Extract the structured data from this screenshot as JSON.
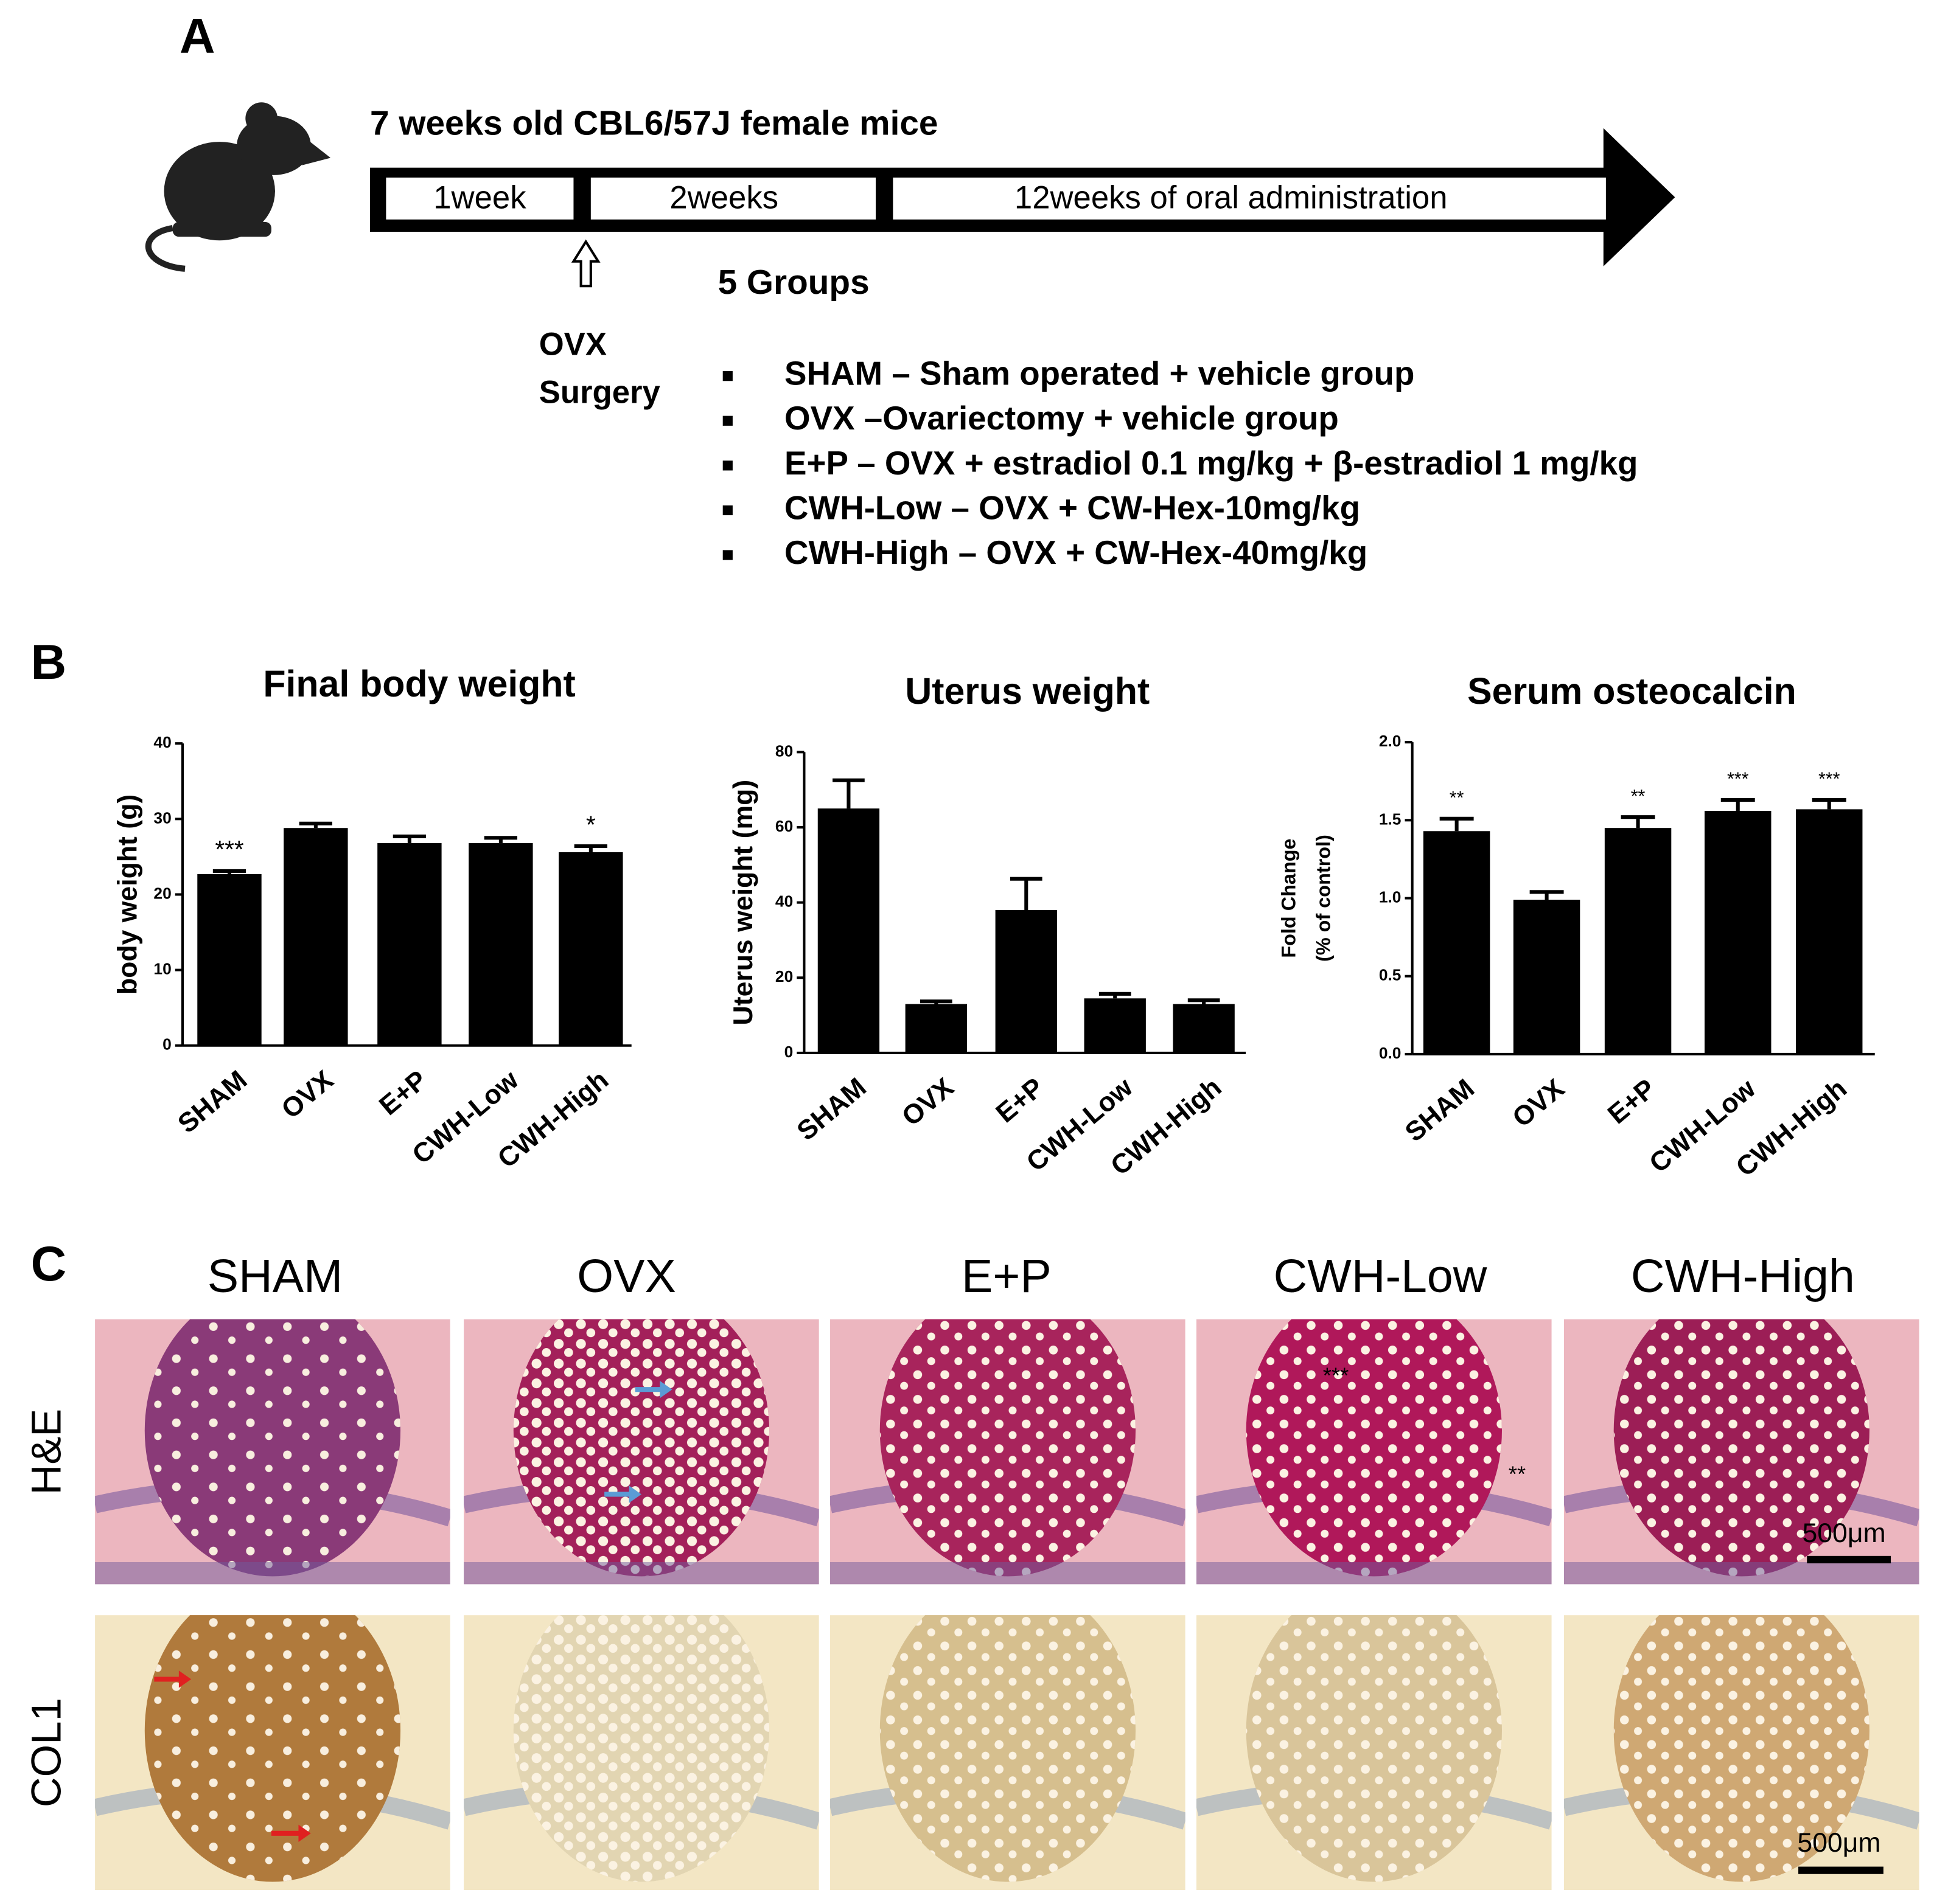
{
  "panel_a": {
    "label": "A",
    "title": "7 weeks old CBL6/57J female mice",
    "phases": [
      "1week",
      "2weeks",
      "12weeks of oral administration"
    ],
    "surgery": [
      "OVX",
      "Surgery"
    ],
    "groups_title": "5 Groups",
    "groups": [
      "SHAM – Sham operated + vehicle group",
      "OVX –Ovariectomy + vehicle group",
      "E+P – OVX + estradiol 0.1 mg/kg + β-estradiol 1 mg/kg",
      "CWH-Low – OVX + CW-Hex-10mg/kg",
      "CWH-High – OVX + CW-Hex-40mg/kg"
    ]
  },
  "panel_b": {
    "label": "B"
  },
  "chart_data": [
    {
      "type": "bar",
      "title": "Final body weight",
      "ylabel": [
        "body weight (g)"
      ],
      "categories": [
        "SHAM",
        "OVX",
        "E+P",
        "CWH-Low",
        "CWH-High"
      ],
      "values": [
        22.7,
        28.8,
        26.8,
        26.8,
        25.6
      ],
      "errors": [
        0.4,
        0.6,
        0.9,
        0.7,
        0.8
      ],
      "annotations": [
        "***",
        null,
        null,
        null,
        "*"
      ],
      "color": "#000000",
      "ylim": [
        0,
        40
      ],
      "yticks": [
        0,
        10,
        20,
        30,
        40
      ]
    },
    {
      "type": "bar",
      "title": "Uterus weight",
      "ylabel": [
        "Uterus weight  (mg)"
      ],
      "categories": [
        "SHAM",
        "OVX",
        "E+P",
        "CWH-Low",
        "CWH-High"
      ],
      "values": [
        65,
        13,
        38,
        14.5,
        13
      ],
      "errors": [
        7.5,
        0.7,
        8.3,
        1.2,
        1
      ],
      "annotations": [
        null,
        null,
        null,
        null,
        null
      ],
      "color": "#000000",
      "ylim": [
        0,
        80
      ],
      "yticks": [
        0,
        20,
        40,
        60,
        80
      ]
    },
    {
      "type": "bar",
      "title": "Serum osteocalcin",
      "ylabel": [
        "Fold Change",
        "(% of control)"
      ],
      "categories": [
        "SHAM",
        "OVX",
        "E+P",
        "CWH-Low",
        "CWH-High"
      ],
      "values": [
        1.43,
        0.99,
        1.45,
        1.56,
        1.57
      ],
      "errors": [
        0.08,
        0.05,
        0.07,
        0.07,
        0.06
      ],
      "annotations": [
        "**",
        null,
        "**",
        "***",
        "***"
      ],
      "color": "#000000",
      "ylim": [
        0,
        2.0
      ],
      "yticks": [
        {
          "value": 0,
          "label": "0.0"
        },
        0.5,
        {
          "value": 1.0,
          "label": "1.0"
        },
        1.5,
        {
          "value": 2.0,
          "label": "2.0"
        }
      ]
    }
  ],
  "panel_c": {
    "label": "C",
    "columns": [
      "SHAM",
      "OVX",
      "E+P",
      "CWH-Low",
      "CWH-High"
    ],
    "rows": [
      "H&E",
      "COL1"
    ],
    "scale_bar": "500μm",
    "annotations": [
      "***",
      "**"
    ]
  }
}
